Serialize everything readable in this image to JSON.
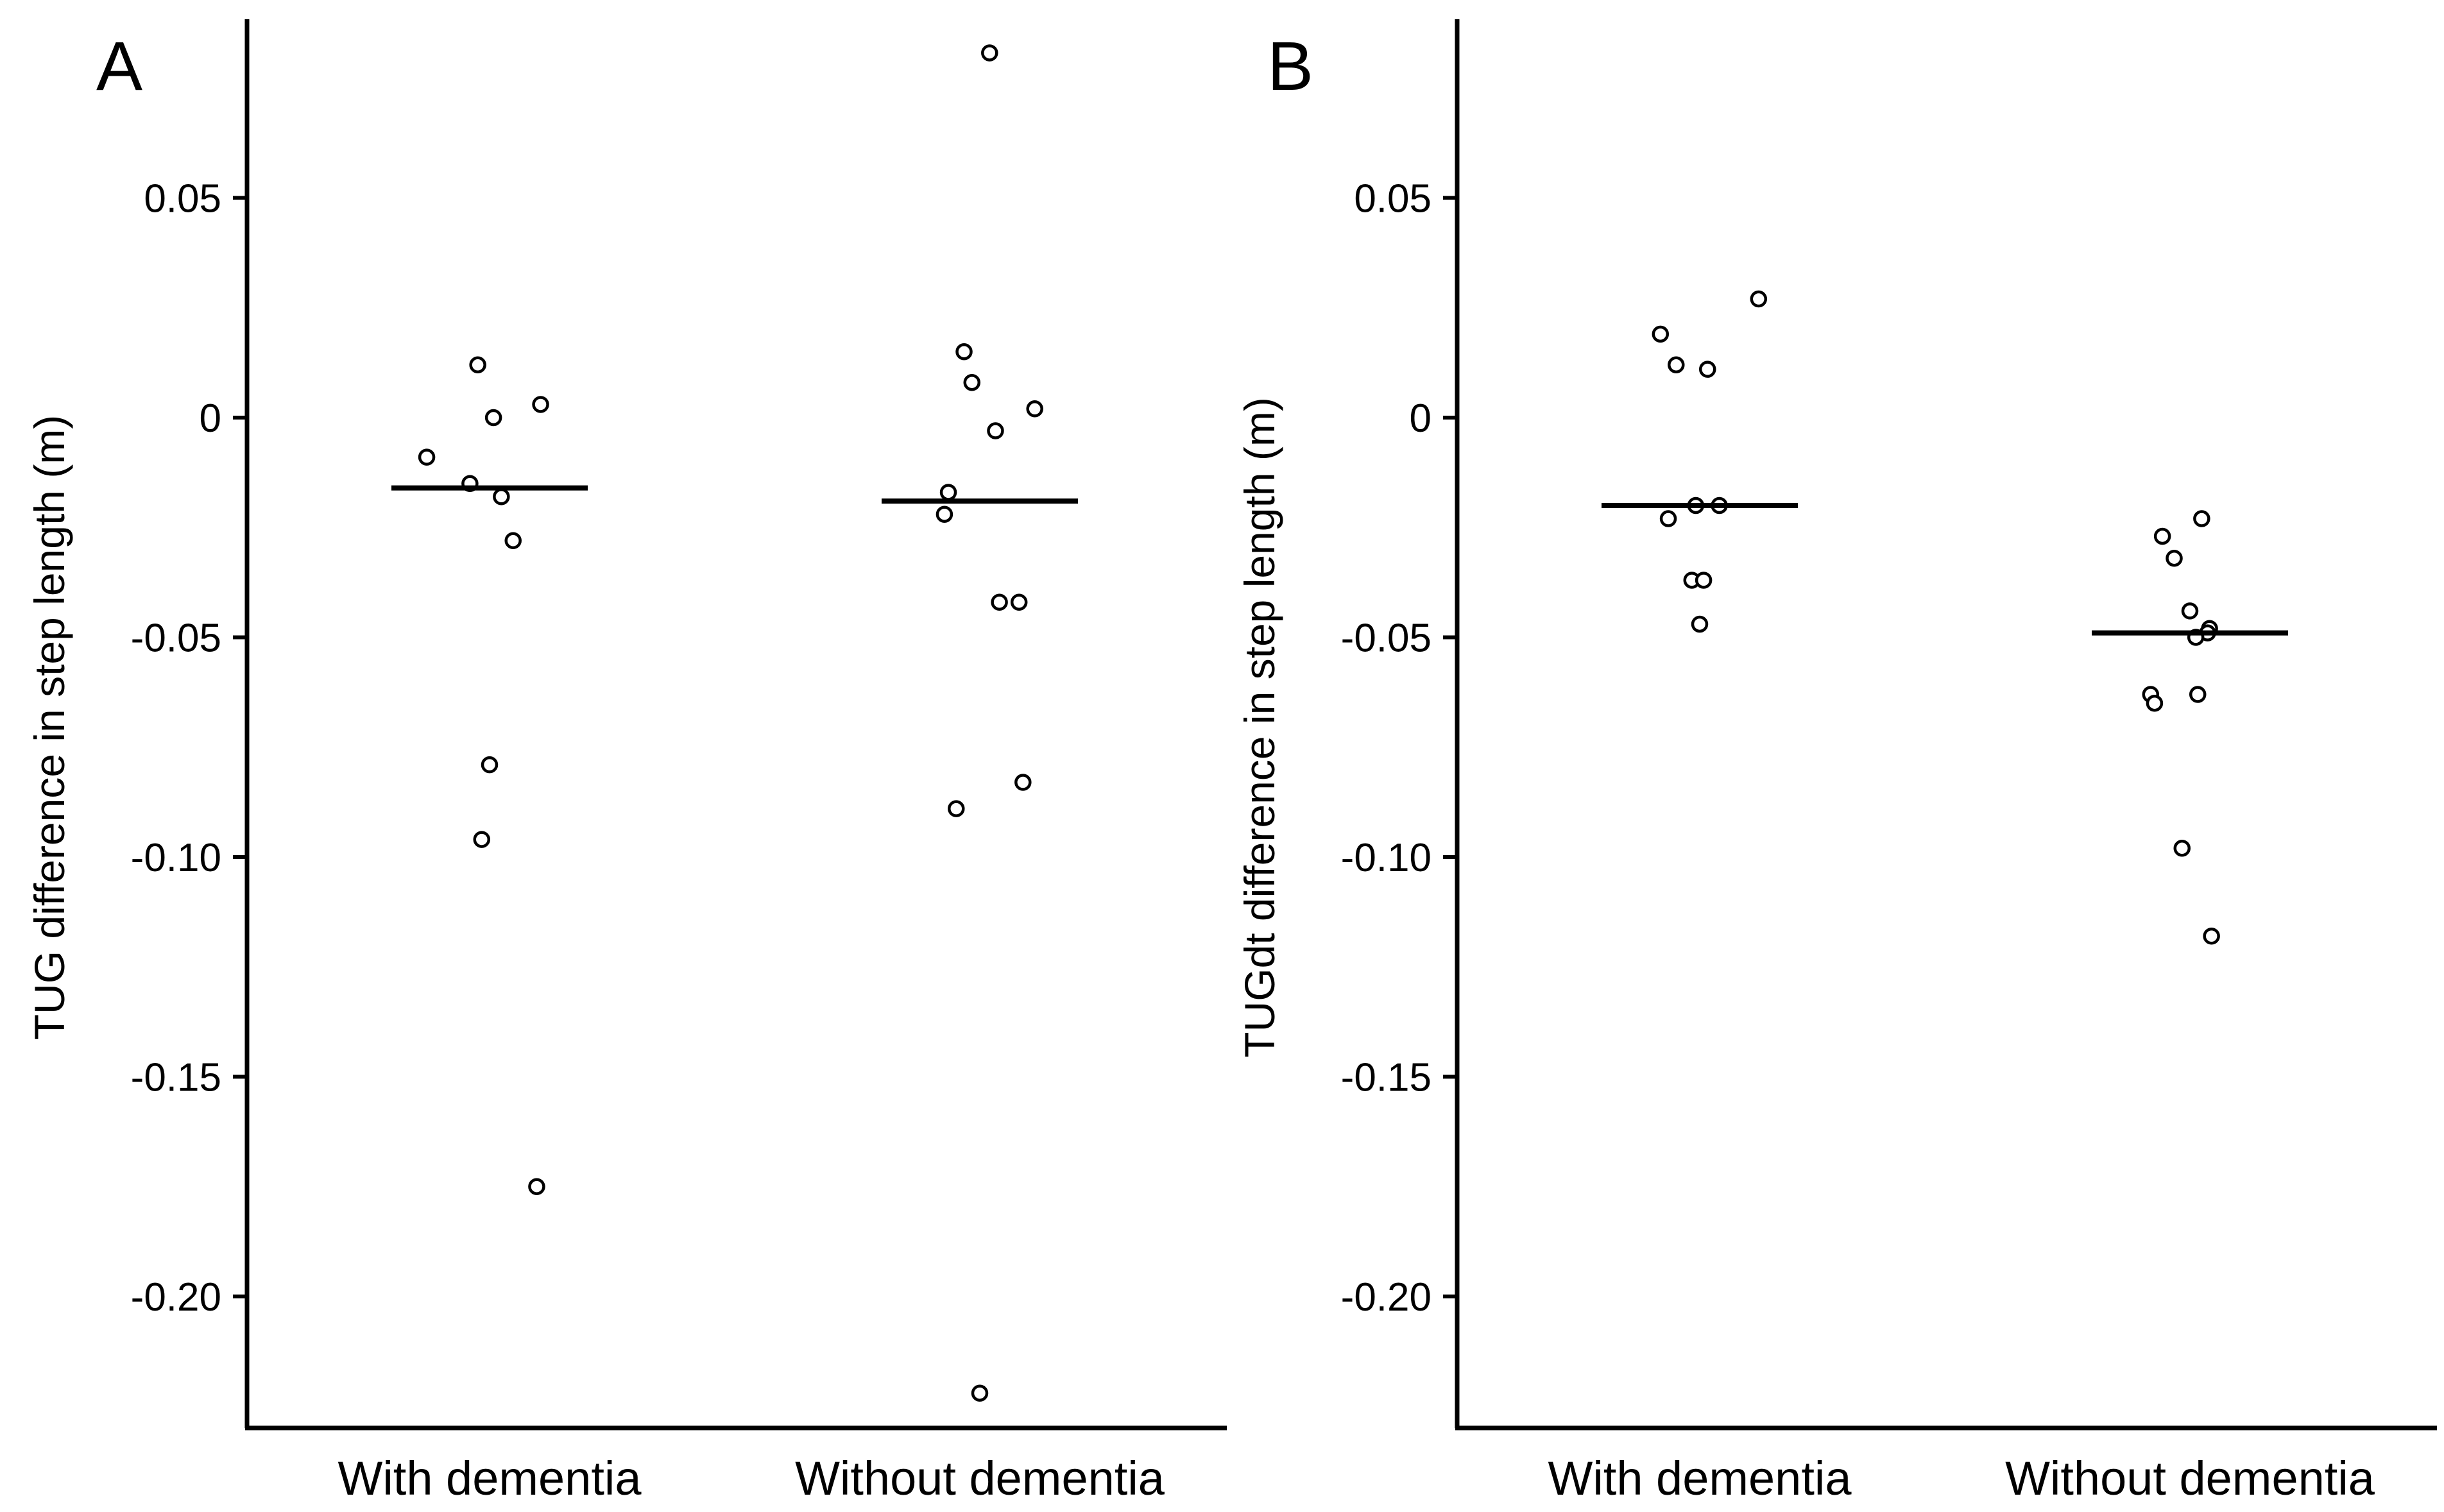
{
  "figure": {
    "colors": {
      "ink": "#000000",
      "background": "#ffffff",
      "marker_fill": "#ffffff"
    }
  },
  "chart_data": [
    {
      "type": "scatter",
      "panel_label": "A",
      "title": "",
      "xlabel": "",
      "ylabel": "TUG difference in step length (m)",
      "categories": [
        "With dementia",
        "Without dementia"
      ],
      "ylim": [
        -0.23,
        0.09
      ],
      "yticks": [
        0.05,
        0,
        -0.05,
        -0.1,
        -0.15,
        -0.2
      ],
      "ytick_labels": [
        "0.05",
        "0",
        "-0.05",
        "-0.10",
        "-0.15",
        "-0.20"
      ],
      "grid": false,
      "series": [
        {
          "name": "With dementia",
          "jitter": [
            -0.06,
            0.26,
            0.02,
            -0.32,
            -0.1,
            0.06,
            0.12,
            0.0,
            -0.04,
            0.24
          ],
          "values": [
            0.012,
            0.003,
            0.0,
            -0.009,
            -0.015,
            -0.018,
            -0.028,
            -0.079,
            -0.096,
            -0.175
          ],
          "median": -0.016
        },
        {
          "name": "Without dementia",
          "jitter": [
            -0.08,
            -0.04,
            0.28,
            0.08,
            -0.16,
            -0.18,
            0.1,
            0.2,
            -0.12,
            0.22,
            0.0
          ],
          "values": [
            0.015,
            0.008,
            0.002,
            -0.003,
            -0.017,
            -0.022,
            -0.042,
            -0.042,
            -0.089,
            -0.083,
            -0.222
          ],
          "median": -0.019,
          "outliers_above": [
            0.083
          ]
        }
      ]
    },
    {
      "type": "scatter",
      "panel_label": "B",
      "title": "",
      "xlabel": "",
      "ylabel": "TUGdt difference in step length (m)",
      "categories": [
        "With dementia",
        "Without dementia"
      ],
      "ylim": [
        -0.23,
        0.09
      ],
      "yticks": [
        0.05,
        0,
        -0.05,
        -0.1,
        -0.15,
        -0.2
      ],
      "ytick_labels": [
        "0.05",
        "0",
        "-0.05",
        "-0.10",
        "-0.15",
        "-0.20"
      ],
      "grid": false,
      "series": [
        {
          "name": "With dementia",
          "jitter": [
            0.3,
            -0.2,
            -0.12,
            0.04,
            0.1,
            -0.16,
            -0.02,
            -0.04,
            0.02,
            0.0
          ],
          "values": [
            0.027,
            0.019,
            0.012,
            0.011,
            -0.02,
            -0.023,
            -0.02,
            -0.037,
            -0.037,
            -0.047
          ],
          "median": -0.02
        },
        {
          "name": "Without dementia",
          "jitter": [
            0.06,
            -0.14,
            -0.08,
            -0.0,
            0.1,
            0.09,
            0.03,
            -0.2,
            -0.18,
            0.04,
            -0.04,
            0.11
          ],
          "values": [
            -0.023,
            -0.027,
            -0.032,
            -0.044,
            -0.048,
            -0.049,
            -0.05,
            -0.063,
            -0.065,
            -0.063,
            -0.098,
            -0.118
          ],
          "median": -0.049
        }
      ]
    }
  ]
}
